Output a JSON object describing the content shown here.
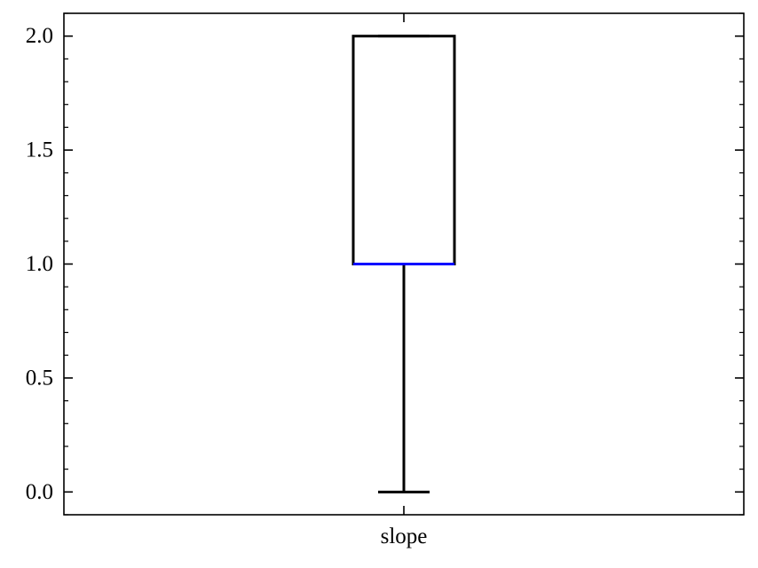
{
  "chart_data": {
    "type": "box",
    "title": "",
    "xlabel": "",
    "ylabel": "",
    "categories": [
      "slope"
    ],
    "ylim": [
      -0.1,
      2.1
    ],
    "yticks": [
      "0.0",
      "0.5",
      "1.0",
      "1.5",
      "2.0"
    ],
    "yticks_values": [
      0.0,
      0.5,
      1.0,
      1.5,
      2.0
    ],
    "y_minor_step": 0.1,
    "tick_direction": "in",
    "ticks_on_all_sides": true,
    "grid": false,
    "boxes": [
      {
        "category": "slope",
        "whisker_low": 0.0,
        "q1": 1.0,
        "median": 1.0,
        "q3": 2.0,
        "whisker_high": 2.0
      }
    ],
    "colors": {
      "box": "#000000",
      "median": "#0000ff",
      "whisker": "#000000",
      "axes": "#000000"
    }
  }
}
